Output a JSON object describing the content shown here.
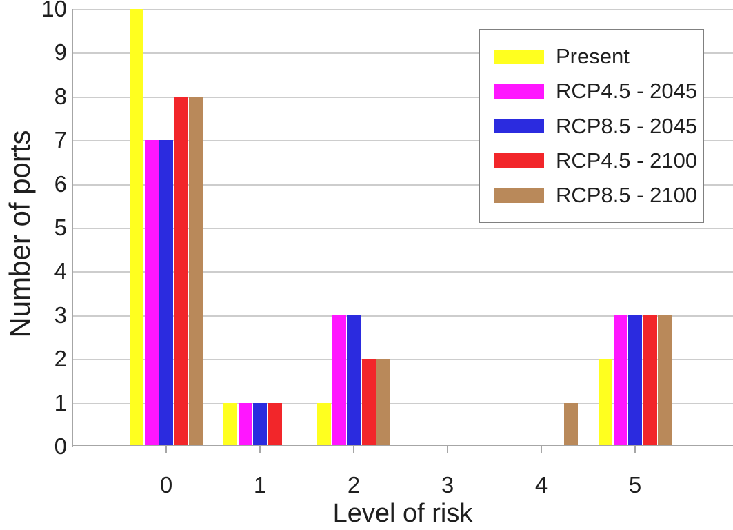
{
  "chart_data": {
    "type": "bar",
    "title": "",
    "xlabel": "Level of risk",
    "ylabel": "Number of ports",
    "categories": [
      "0",
      "1",
      "2",
      "3",
      "4",
      "5"
    ],
    "series": [
      {
        "name": "Present",
        "color": "#FFFF1F",
        "values": [
          10,
          1,
          1,
          0,
          0,
          2
        ]
      },
      {
        "name": "RCP4.5 - 2045",
        "color": "#FF16FF",
        "values": [
          7,
          1,
          3,
          0,
          0,
          3
        ]
      },
      {
        "name": "RCP8.5 - 2045",
        "color": "#2B2BDF",
        "values": [
          7,
          1,
          3,
          0,
          0,
          3
        ]
      },
      {
        "name": "RCP4.5 - 2100",
        "color": "#F2262A",
        "values": [
          8,
          1,
          2,
          0,
          0,
          3
        ]
      },
      {
        "name": "RCP8.5 - 2100",
        "color": "#B9895A",
        "values": [
          8,
          0,
          2,
          0,
          1,
          3
        ]
      }
    ],
    "ylim": [
      0,
      10
    ],
    "yticks": [
      "0",
      "1",
      "2",
      "3",
      "4",
      "5",
      "6",
      "7",
      "8",
      "9",
      "10"
    ],
    "grid": true,
    "legend_position": "top-right",
    "colors": {
      "gridline": "#cdcdcd",
      "axis": "#a6a6a6",
      "legend_border": "#808080",
      "text": "#1f1f1f"
    }
  }
}
